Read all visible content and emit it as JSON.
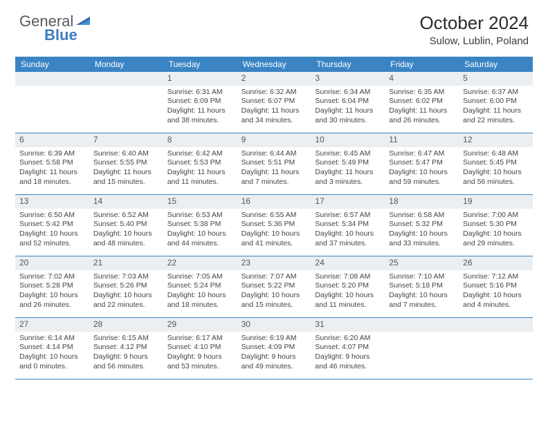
{
  "logo": {
    "text1": "General",
    "text2": "Blue"
  },
  "title": "October 2024",
  "subtitle": "Sulow, Lublin, Poland",
  "colors": {
    "header_bg": "#3b84c4",
    "daynum_bg": "#eceff1",
    "border": "#3b84c4",
    "logo_gray": "#555a5f",
    "logo_blue": "#3b7cc0"
  },
  "dayNames": [
    "Sunday",
    "Monday",
    "Tuesday",
    "Wednesday",
    "Thursday",
    "Friday",
    "Saturday"
  ],
  "weeks": [
    [
      null,
      null,
      {
        "n": "1",
        "sr": "6:31 AM",
        "ss": "6:09 PM",
        "dl": "11 hours and 38 minutes."
      },
      {
        "n": "2",
        "sr": "6:32 AM",
        "ss": "6:07 PM",
        "dl": "11 hours and 34 minutes."
      },
      {
        "n": "3",
        "sr": "6:34 AM",
        "ss": "6:04 PM",
        "dl": "11 hours and 30 minutes."
      },
      {
        "n": "4",
        "sr": "6:35 AM",
        "ss": "6:02 PM",
        "dl": "11 hours and 26 minutes."
      },
      {
        "n": "5",
        "sr": "6:37 AM",
        "ss": "6:00 PM",
        "dl": "11 hours and 22 minutes."
      }
    ],
    [
      {
        "n": "6",
        "sr": "6:39 AM",
        "ss": "5:58 PM",
        "dl": "11 hours and 18 minutes."
      },
      {
        "n": "7",
        "sr": "6:40 AM",
        "ss": "5:55 PM",
        "dl": "11 hours and 15 minutes."
      },
      {
        "n": "8",
        "sr": "6:42 AM",
        "ss": "5:53 PM",
        "dl": "11 hours and 11 minutes."
      },
      {
        "n": "9",
        "sr": "6:44 AM",
        "ss": "5:51 PM",
        "dl": "11 hours and 7 minutes."
      },
      {
        "n": "10",
        "sr": "6:45 AM",
        "ss": "5:49 PM",
        "dl": "11 hours and 3 minutes."
      },
      {
        "n": "11",
        "sr": "6:47 AM",
        "ss": "5:47 PM",
        "dl": "10 hours and 59 minutes."
      },
      {
        "n": "12",
        "sr": "6:48 AM",
        "ss": "5:45 PM",
        "dl": "10 hours and 56 minutes."
      }
    ],
    [
      {
        "n": "13",
        "sr": "6:50 AM",
        "ss": "5:42 PM",
        "dl": "10 hours and 52 minutes."
      },
      {
        "n": "14",
        "sr": "6:52 AM",
        "ss": "5:40 PM",
        "dl": "10 hours and 48 minutes."
      },
      {
        "n": "15",
        "sr": "6:53 AM",
        "ss": "5:38 PM",
        "dl": "10 hours and 44 minutes."
      },
      {
        "n": "16",
        "sr": "6:55 AM",
        "ss": "5:36 PM",
        "dl": "10 hours and 41 minutes."
      },
      {
        "n": "17",
        "sr": "6:57 AM",
        "ss": "5:34 PM",
        "dl": "10 hours and 37 minutes."
      },
      {
        "n": "18",
        "sr": "6:58 AM",
        "ss": "5:32 PM",
        "dl": "10 hours and 33 minutes."
      },
      {
        "n": "19",
        "sr": "7:00 AM",
        "ss": "5:30 PM",
        "dl": "10 hours and 29 minutes."
      }
    ],
    [
      {
        "n": "20",
        "sr": "7:02 AM",
        "ss": "5:28 PM",
        "dl": "10 hours and 26 minutes."
      },
      {
        "n": "21",
        "sr": "7:03 AM",
        "ss": "5:26 PM",
        "dl": "10 hours and 22 minutes."
      },
      {
        "n": "22",
        "sr": "7:05 AM",
        "ss": "5:24 PM",
        "dl": "10 hours and 18 minutes."
      },
      {
        "n": "23",
        "sr": "7:07 AM",
        "ss": "5:22 PM",
        "dl": "10 hours and 15 minutes."
      },
      {
        "n": "24",
        "sr": "7:08 AM",
        "ss": "5:20 PM",
        "dl": "10 hours and 11 minutes."
      },
      {
        "n": "25",
        "sr": "7:10 AM",
        "ss": "5:18 PM",
        "dl": "10 hours and 7 minutes."
      },
      {
        "n": "26",
        "sr": "7:12 AM",
        "ss": "5:16 PM",
        "dl": "10 hours and 4 minutes."
      }
    ],
    [
      {
        "n": "27",
        "sr": "6:14 AM",
        "ss": "4:14 PM",
        "dl": "10 hours and 0 minutes."
      },
      {
        "n": "28",
        "sr": "6:15 AM",
        "ss": "4:12 PM",
        "dl": "9 hours and 56 minutes."
      },
      {
        "n": "29",
        "sr": "6:17 AM",
        "ss": "4:10 PM",
        "dl": "9 hours and 53 minutes."
      },
      {
        "n": "30",
        "sr": "6:19 AM",
        "ss": "4:09 PM",
        "dl": "9 hours and 49 minutes."
      },
      {
        "n": "31",
        "sr": "6:20 AM",
        "ss": "4:07 PM",
        "dl": "9 hours and 46 minutes."
      },
      null,
      null
    ]
  ]
}
